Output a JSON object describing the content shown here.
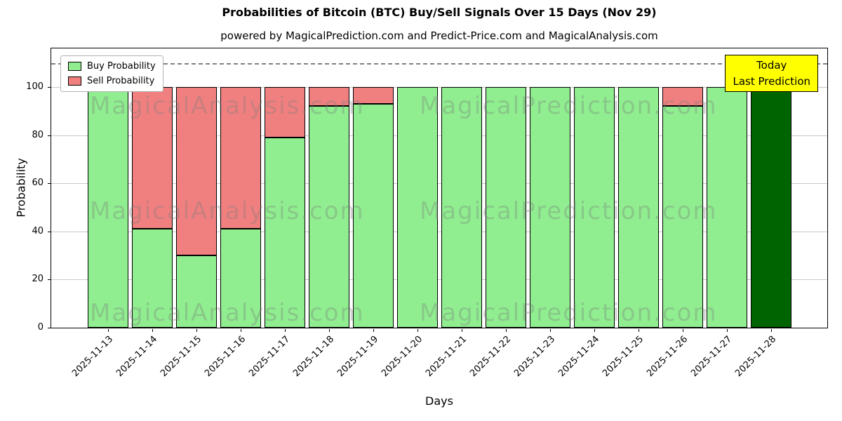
{
  "figure": {
    "title": "Probabilities of Bitcoin (BTC) Buy/Sell Signals Over 15 Days (Nov 29)",
    "subtitle": "powered by MagicalPrediction.com and Predict-Price.com and MagicalAnalysis.com"
  },
  "legend": {
    "items": [
      {
        "label": "Buy Probability",
        "color": "#90EE90"
      },
      {
        "label": "Sell Probability",
        "color": "#F08080"
      }
    ]
  },
  "annotation_box": {
    "lines": [
      "Today",
      "Last Prediction"
    ],
    "bg": "#FFFF00"
  },
  "axes": {
    "x_label": "Days",
    "y_label": "Probability",
    "y_ticks": [
      0,
      20,
      40,
      60,
      80,
      100
    ],
    "ylim": [
      0,
      116
    ],
    "dashed_line_value": 110
  },
  "watermarks": {
    "left_text": "MagicalAnalysis.com",
    "right_text": "MagicalPrediction.com"
  },
  "colors": {
    "buy": "#90EE90",
    "sell": "#F08080",
    "today": "#006400",
    "bar_edge": "#000000",
    "grid": "#c9c9c9",
    "dashed_line": "#7f7f7f"
  },
  "chart_data": {
    "type": "bar",
    "stacked": true,
    "title": "Probabilities of Bitcoin (BTC) Buy/Sell Signals Over 15 Days (Nov 29)",
    "xlabel": "Days",
    "ylabel": "Probability",
    "ylim": [
      0,
      116
    ],
    "grid": true,
    "legend_position": "upper-left",
    "categories": [
      "2025-11-13",
      "2025-11-14",
      "2025-11-15",
      "2025-11-16",
      "2025-11-17",
      "2025-11-18",
      "2025-11-19",
      "2025-11-20",
      "2025-11-21",
      "2025-11-22",
      "2025-11-23",
      "2025-11-24",
      "2025-11-25",
      "2025-11-26",
      "2025-11-27",
      "2025-11-28"
    ],
    "series": [
      {
        "name": "Buy Probability",
        "color": "#90EE90",
        "values": [
          100,
          41,
          30,
          41,
          79,
          92,
          93,
          100,
          100,
          100,
          100,
          100,
          100,
          92,
          100,
          100
        ]
      },
      {
        "name": "Sell Probability",
        "color": "#F08080",
        "values": [
          0,
          59,
          70,
          59,
          21,
          8,
          7,
          0,
          0,
          0,
          0,
          0,
          0,
          8,
          0,
          0
        ]
      }
    ],
    "today_index": 15,
    "today_color": "#006400"
  }
}
